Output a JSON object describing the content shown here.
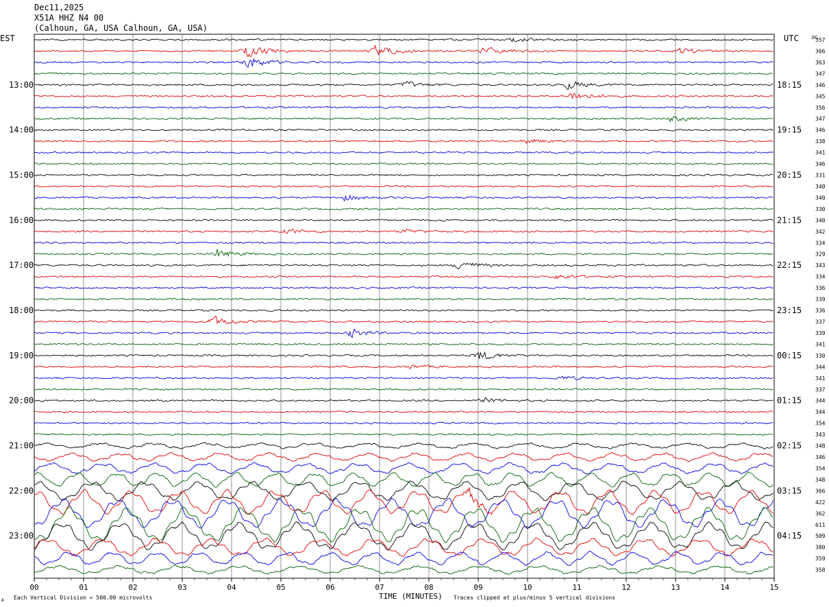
{
  "header": {
    "date": "Dec11,2025",
    "station": "X51A HHZ N4 00",
    "location": "(Calhoun, GA, USA Calhoun, GA, USA)"
  },
  "left_timezone": "EST",
  "right_timezone": "UTC",
  "dc_label": "DC",
  "footer": {
    "scale_note": "Each Vertical Division =  500.00 microvolts",
    "clip_note": "Traces clipped at plus/minus 5 vertical divisions",
    "corner_mark": "A"
  },
  "chart_data": {
    "type": "line",
    "title": "",
    "xlabel": "TIME (MINUTES)",
    "ylabel": "",
    "xlim": [
      0,
      15
    ],
    "x_ticks": [
      "00",
      "01",
      "02",
      "03",
      "04",
      "05",
      "06",
      "07",
      "08",
      "09",
      "10",
      "11",
      "12",
      "13",
      "14",
      "15"
    ],
    "grid": true,
    "trace_colors": [
      "#000000",
      "#e00000",
      "#0000e0",
      "#006000"
    ],
    "left_hour_labels": [
      "13:00",
      "14:00",
      "15:00",
      "16:00",
      "17:00",
      "18:00",
      "19:00",
      "20:00",
      "21:00",
      "22:00",
      "23:00"
    ],
    "right_hour_labels": [
      "18:15",
      "19:15",
      "20:15",
      "21:15",
      "22:15",
      "23:15",
      "00:15",
      "01:15",
      "02:15",
      "03:15",
      "04:15"
    ],
    "dc_values": [
      357,
      366,
      363,
      347,
      346,
      345,
      356,
      347,
      346,
      338,
      341,
      346,
      331,
      340,
      340,
      330,
      340,
      342,
      334,
      329,
      343,
      334,
      336,
      339,
      336,
      337,
      339,
      341,
      330,
      344,
      341,
      337,
      344,
      344,
      354,
      343,
      348,
      346,
      354,
      348,
      366,
      422,
      362,
      611,
      509,
      380,
      359,
      358
    ],
    "events": [
      {
        "row": 1,
        "minute": 4.3,
        "amplitude": 2.5
      },
      {
        "row": 2,
        "minute": 4.3,
        "amplitude": 3.2
      },
      {
        "row": 1,
        "minute": 6.9,
        "amplitude": 2.6
      },
      {
        "row": 1,
        "minute": 9.1,
        "amplitude": 1.4
      },
      {
        "row": 1,
        "minute": 13.1,
        "amplitude": 1.2
      },
      {
        "row": 0,
        "minute": 9.7,
        "amplitude": 1.1
      },
      {
        "row": 4,
        "minute": 7.5,
        "amplitude": 1.5
      },
      {
        "row": 4,
        "minute": 10.8,
        "amplitude": 1.8
      },
      {
        "row": 5,
        "minute": 10.9,
        "amplitude": 2.2
      },
      {
        "row": 7,
        "minute": 12.9,
        "amplitude": 1.3
      },
      {
        "row": 9,
        "minute": 10.0,
        "amplitude": 1.0
      },
      {
        "row": 14,
        "minute": 6.3,
        "amplitude": 1.2
      },
      {
        "row": 17,
        "minute": 5.1,
        "amplitude": 1.1
      },
      {
        "row": 17,
        "minute": 7.5,
        "amplitude": 0.9
      },
      {
        "row": 19,
        "minute": 3.7,
        "amplitude": 2.1
      },
      {
        "row": 20,
        "minute": 8.6,
        "amplitude": 2.0
      },
      {
        "row": 21,
        "minute": 10.6,
        "amplitude": 1.0
      },
      {
        "row": 25,
        "minute": 3.6,
        "amplitude": 2.4
      },
      {
        "row": 26,
        "minute": 6.4,
        "amplitude": 1.8
      },
      {
        "row": 28,
        "minute": 9.0,
        "amplitude": 2.2
      },
      {
        "row": 29,
        "minute": 7.6,
        "amplitude": 0.8
      },
      {
        "row": 30,
        "minute": 10.7,
        "amplitude": 0.8
      },
      {
        "row": 32,
        "minute": 9.1,
        "amplitude": 1.0
      },
      {
        "row": 41,
        "minute": 8.8,
        "amplitude": 2.6
      }
    ],
    "noise": {
      "baseline": 0.35,
      "swell_rows": {
        "36": 0.6,
        "37": 0.9,
        "38": 1.2,
        "39": 1.6,
        "40": 2.2,
        "41": 2.8,
        "42": 3.4,
        "43": 4.0,
        "44": 3.2,
        "45": 2.0,
        "46": 1.5,
        "47": 0.9
      }
    }
  }
}
